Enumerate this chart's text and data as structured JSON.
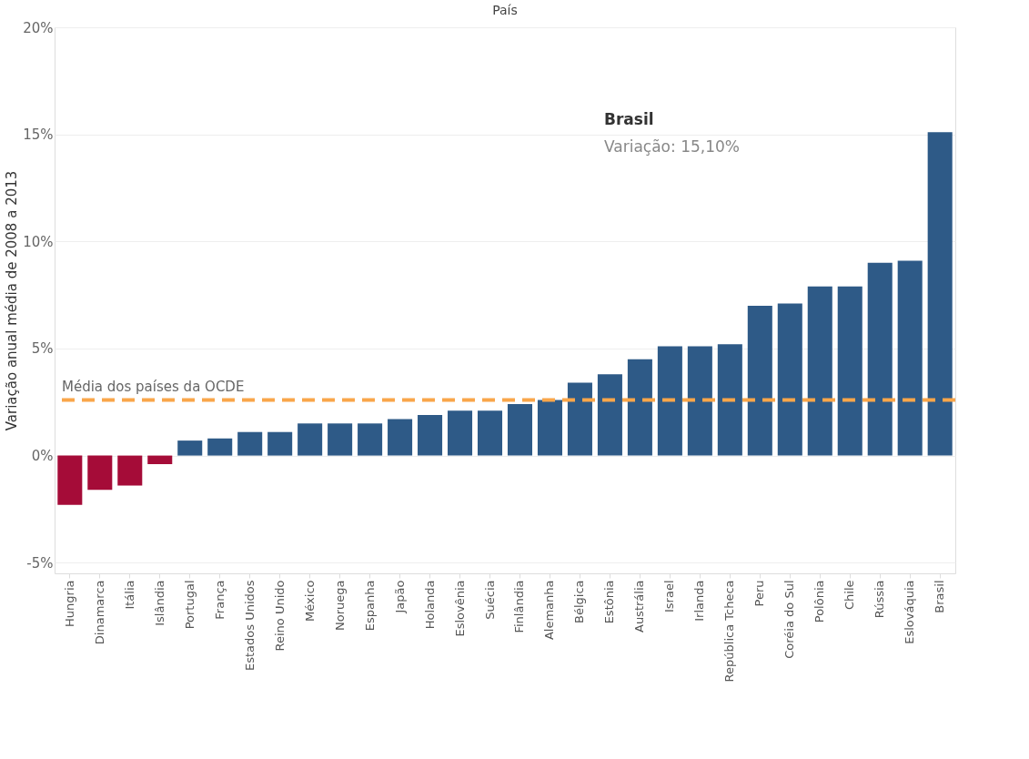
{
  "chart_data": {
    "type": "bar",
    "xlabel": "País",
    "ylabel": "Variação anual média de 2008 a 2013",
    "categories": [
      "Hungria",
      "Dinamarca",
      "Itália",
      "Islândia",
      "Portugal",
      "França",
      "Estados Unidos",
      "Reino Unido",
      "México",
      "Noruega",
      "Espanha",
      "Japão",
      "Holanda",
      "Eslovênia",
      "Suécia",
      "Finlândia",
      "Alemanha",
      "Bélgica",
      "Estônia",
      "Austrália",
      "Israel",
      "Irlanda",
      "República Tcheca",
      "Peru",
      "Coréia do Sul",
      "Polônia",
      "Chile",
      "Rússia",
      "Eslováquia",
      "Brasil"
    ],
    "values": [
      -2.3,
      -1.6,
      -1.4,
      -0.4,
      0.7,
      0.8,
      1.1,
      1.1,
      1.5,
      1.5,
      1.5,
      1.7,
      1.9,
      2.1,
      2.1,
      2.4,
      2.6,
      3.4,
      3.8,
      4.5,
      5.1,
      5.1,
      5.2,
      7.0,
      7.1,
      7.9,
      7.9,
      9.0,
      9.1,
      15.1
    ],
    "colors": [
      "#a50c38",
      "#a50c38",
      "#a50c38",
      "#a50c38",
      "#2e5a87",
      "#2e5a87",
      "#2e5a87",
      "#2e5a87",
      "#2e5a87",
      "#2e5a87",
      "#2e5a87",
      "#2e5a87",
      "#2e5a87",
      "#2e5a87",
      "#2e5a87",
      "#2e5a87",
      "#2e5a87",
      "#2e5a87",
      "#2e5a87",
      "#2e5a87",
      "#2e5a87",
      "#2e5a87",
      "#2e5a87",
      "#2e5a87",
      "#2e5a87",
      "#2e5a87",
      "#2e5a87",
      "#2e5a87",
      "#2e5a87",
      "#2e5a87"
    ],
    "ylim": [
      -5.5,
      20
    ],
    "yticks": [
      {
        "value": -5,
        "label": "-5%"
      },
      {
        "value": 0,
        "label": "0%"
      },
      {
        "value": 5,
        "label": "5%"
      },
      {
        "value": 10,
        "label": "10%"
      },
      {
        "value": 15,
        "label": "15%"
      },
      {
        "value": 20,
        "label": "20%"
      }
    ],
    "grid": "y",
    "ref_lines": [
      {
        "axis": "y",
        "value": 2.6,
        "label": "Média dos países da OCDE",
        "color": "#f9a64a",
        "line_style": "dashed"
      }
    ],
    "annotations": [
      "Brasil",
      "Variação: 15,10%"
    ]
  }
}
